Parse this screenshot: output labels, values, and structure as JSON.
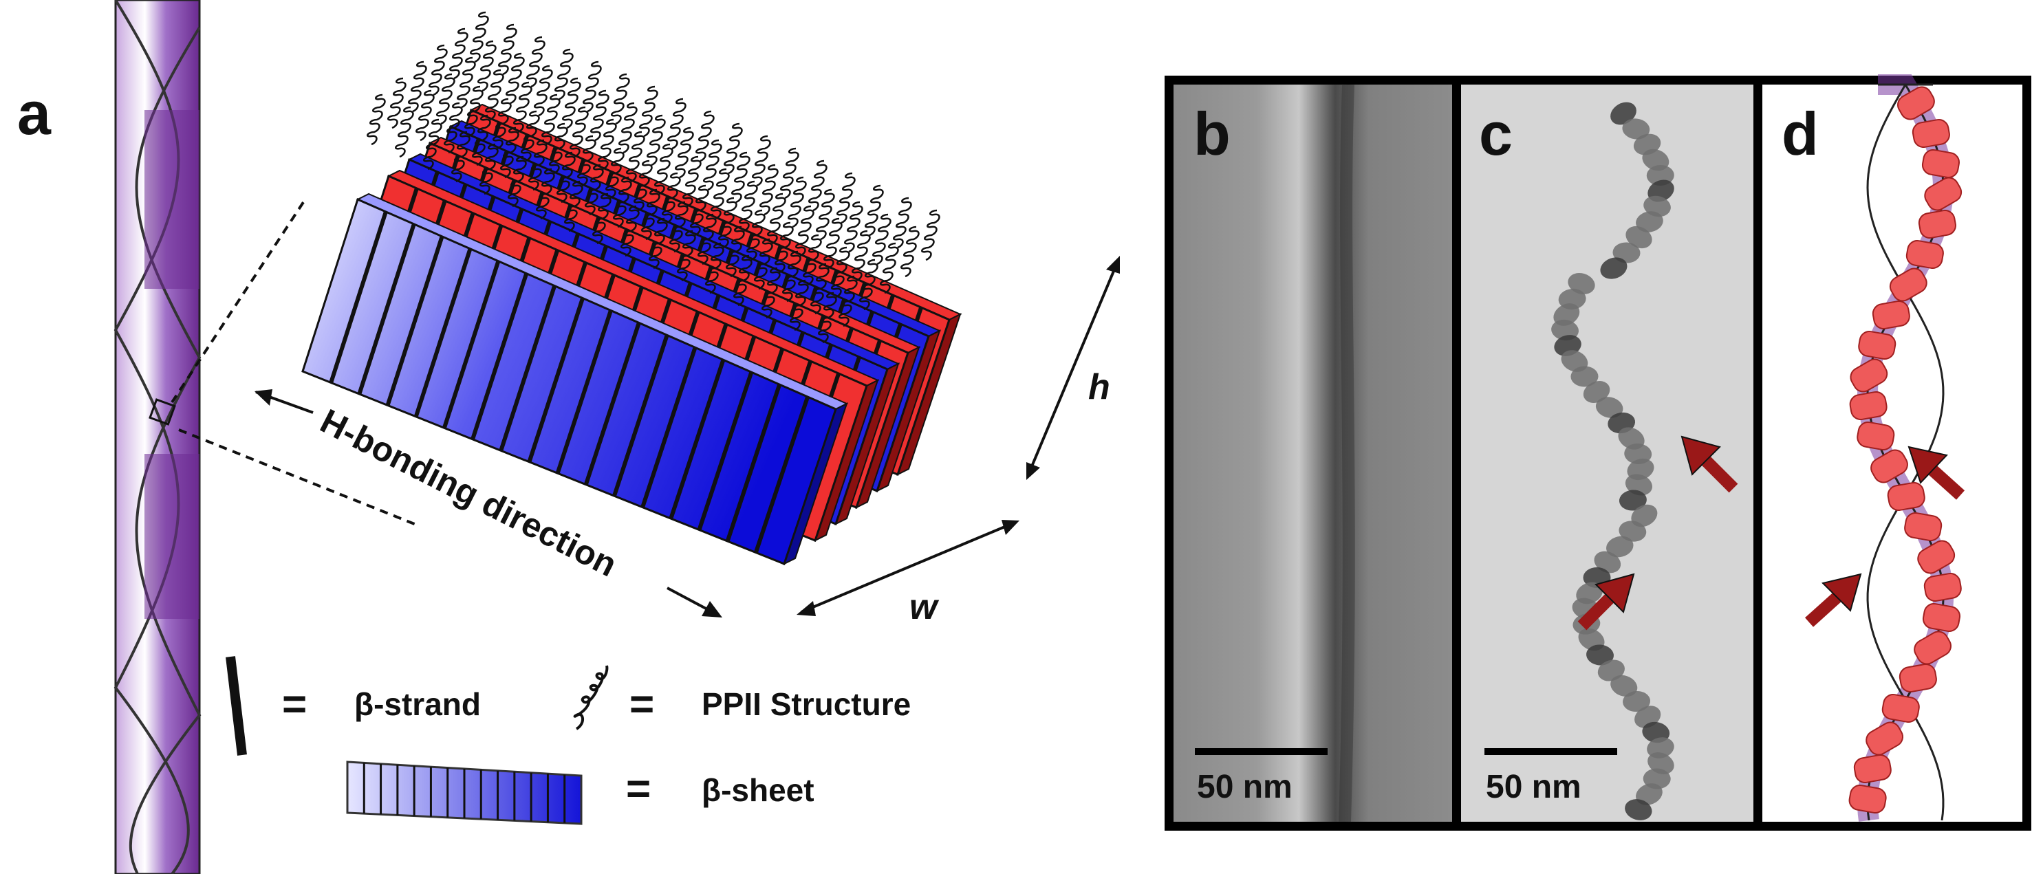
{
  "panels": {
    "a": {
      "letter": "a",
      "h_bonding_label": "H-bonding direction",
      "height_label": "h",
      "width_label": "w"
    },
    "b": {
      "letter": "b",
      "scale_bar": "50 nm"
    },
    "c": {
      "letter": "c",
      "scale_bar": "50 nm"
    },
    "d": {
      "letter": "d"
    }
  },
  "legend": {
    "strand_equals": "=",
    "strand_label": "β-strand",
    "ppii_equals": "=",
    "ppii_label": "PPII Structure",
    "sheet_equals": "=",
    "sheet_label": "β-sheet"
  },
  "colors": {
    "fibril_purple": "#7a3aa0",
    "sheet_blue": "#1f1fe0",
    "sheet_red": "#f03030",
    "arrow_darkred": "#a01818",
    "particle_pink": "#ee5a5a"
  }
}
